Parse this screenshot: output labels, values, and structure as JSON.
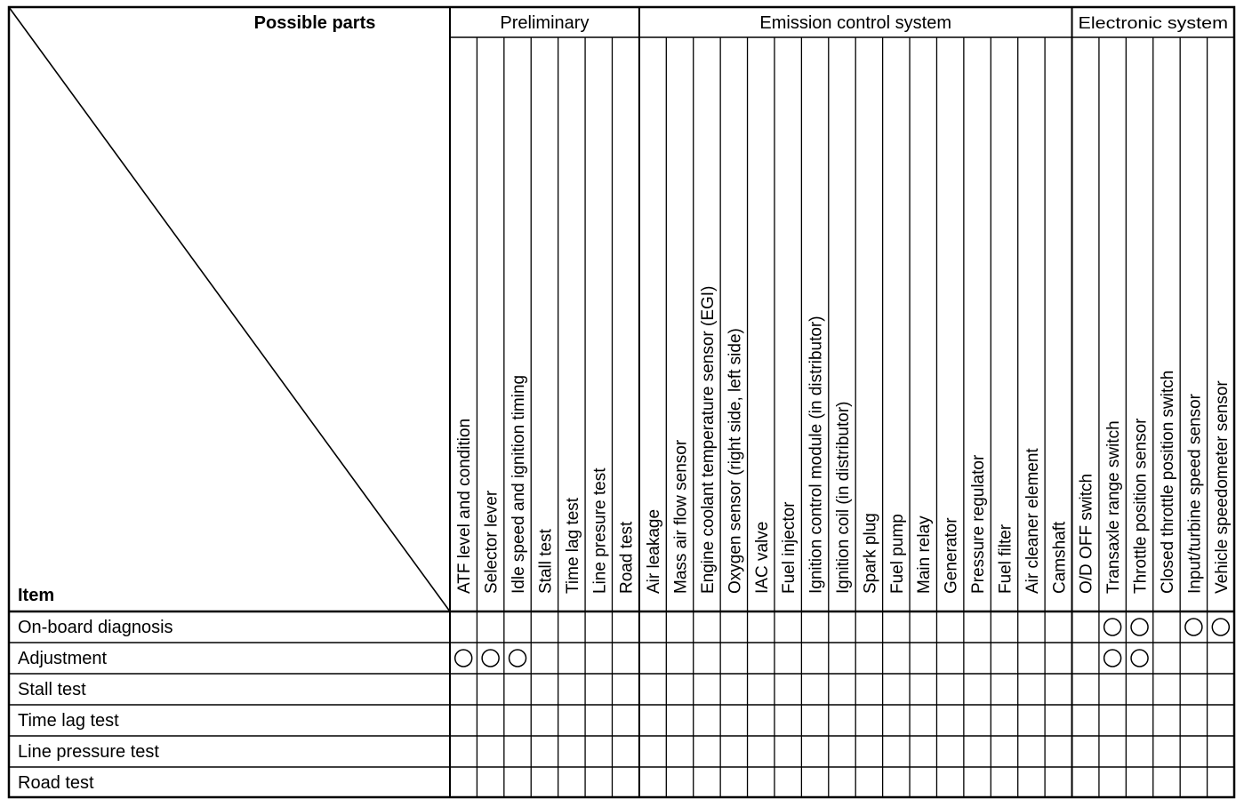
{
  "corner": {
    "top_label": "Possible parts",
    "bottom_label": "Item"
  },
  "groups": [
    {
      "label": "Preliminary",
      "span": 7
    },
    {
      "label": "Emission control system",
      "span": 16
    },
    {
      "label": "Electronic system",
      "span": 6
    }
  ],
  "columns": [
    "ATF level and condition",
    "Selector lever",
    "Idle speed and ignition timing",
    "Stall test",
    "Time lag test",
    "Line presure test",
    "Road test",
    "Air leakage",
    "Mass air flow sensor",
    "Engine coolant temperature sensor (EGI)",
    "Oxygen sensor (right side, left side)",
    "IAC valve",
    "Fuel injector",
    "Ignition control module (in distributor)",
    "Ignition coil (in distributor)",
    "Spark plug",
    "Fuel pump",
    "Main relay",
    "Generator",
    "Pressure regulator",
    "Fuel filter",
    "Air cleaner element",
    "Camshaft",
    "O/D OFF switch",
    "Transaxle range switch",
    "Throttle position sensor",
    "Closed throttle position switch",
    "Input/turbine speed sensor",
    "Vehicle speedometer sensor"
  ],
  "rows": [
    {
      "label": "On-board diagnosis",
      "marks": [
        24,
        25,
        27,
        28
      ]
    },
    {
      "label": "Adjustment",
      "marks": [
        0,
        1,
        2,
        24,
        25
      ]
    },
    {
      "label": "Stall test",
      "marks": []
    },
    {
      "label": "Time lag test",
      "marks": []
    },
    {
      "label": "Line pressure test",
      "marks": []
    },
    {
      "label": "Road test",
      "marks": []
    }
  ],
  "mark_symbol": "circle"
}
